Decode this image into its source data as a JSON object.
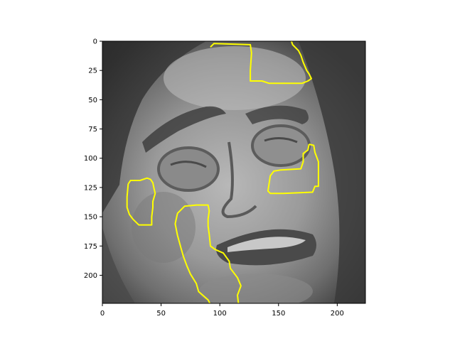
{
  "image": {
    "description_icon": "face-photo-icon",
    "colormap": "grayscale",
    "contour_color": "#ffff00"
  },
  "axes": {
    "x_ticks": [
      "0",
      "50",
      "100",
      "150",
      "200"
    ],
    "y_ticks": [
      "0",
      "25",
      "50",
      "75",
      "100",
      "125",
      "150",
      "175",
      "200"
    ],
    "x_range": [
      0,
      224
    ],
    "y_range": [
      224,
      0
    ],
    "y_inverted": true
  },
  "chart_data": {
    "type": "image",
    "xlim": [
      0,
      224
    ],
    "ylim": [
      224,
      0
    ],
    "x_ticks": [
      0,
      50,
      100,
      150,
      200
    ],
    "y_ticks": [
      0,
      25,
      50,
      75,
      100,
      125,
      150,
      175,
      200
    ],
    "regions": [
      {
        "name": "",
        "points": [
          [
            92,
            5
          ],
          [
            95,
            2
          ],
          [
            126,
            3
          ],
          [
            127,
            10
          ],
          [
            126,
            25
          ],
          [
            126,
            34
          ],
          [
            136,
            34
          ],
          [
            142,
            36
          ],
          [
            170,
            36
          ],
          [
            175,
            34
          ],
          [
            178,
            32
          ],
          [
            176,
            28
          ],
          [
            174,
            25
          ],
          [
            171,
            18
          ],
          [
            169,
            12
          ],
          [
            167,
            8
          ],
          [
            162,
            3
          ],
          [
            161,
            0
          ]
        ]
      },
      {
        "name": "",
        "points": [
          [
            176,
            88
          ],
          [
            180,
            89
          ],
          [
            181,
            95
          ],
          [
            184,
            103
          ],
          [
            184,
            124
          ],
          [
            181,
            124
          ],
          [
            179,
            129
          ],
          [
            154,
            130
          ],
          [
            143,
            130
          ],
          [
            141,
            128
          ],
          [
            143,
            115
          ],
          [
            146,
            111
          ],
          [
            152,
            110
          ],
          [
            169,
            109
          ],
          [
            171,
            103
          ],
          [
            171,
            96
          ],
          [
            175,
            93
          ],
          [
            176,
            88
          ]
        ]
      },
      {
        "name": "",
        "points": [
          [
            22,
            122
          ],
          [
            24,
            119
          ],
          [
            32,
            119
          ],
          [
            38,
            117
          ],
          [
            41,
            118
          ],
          [
            43,
            121
          ],
          [
            44,
            126
          ],
          [
            45,
            130
          ],
          [
            43,
            137
          ],
          [
            43,
            142
          ],
          [
            42,
            150
          ],
          [
            42,
            157
          ],
          [
            38,
            157
          ],
          [
            31,
            157
          ],
          [
            26,
            152
          ],
          [
            23,
            148
          ],
          [
            21,
            142
          ],
          [
            21,
            133
          ],
          [
            22,
            122
          ]
        ]
      },
      {
        "name": "",
        "points": [
          [
            92,
            225
          ],
          [
            90,
            221
          ],
          [
            82,
            214
          ],
          [
            80,
            207
          ],
          [
            75,
            199
          ],
          [
            72,
            192
          ],
          [
            69,
            184
          ],
          [
            67,
            177
          ],
          [
            64,
            166
          ],
          [
            62,
            156
          ],
          [
            64,
            147
          ],
          [
            70,
            141
          ],
          [
            80,
            140
          ],
          [
            90,
            140
          ],
          [
            91,
            145
          ],
          [
            90,
            152
          ],
          [
            90,
            158
          ],
          [
            91,
            165
          ],
          [
            92,
            175
          ],
          [
            96,
            178
          ],
          [
            103,
            181
          ],
          [
            108,
            188
          ],
          [
            109,
            194
          ],
          [
            115,
            202
          ],
          [
            118,
            209
          ],
          [
            115,
            217
          ],
          [
            116,
            225
          ]
        ]
      }
    ]
  }
}
